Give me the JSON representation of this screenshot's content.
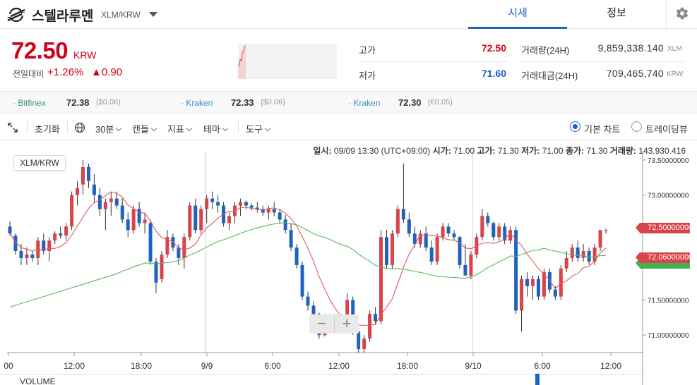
{
  "header": {
    "coin_name": "스텔라루멘",
    "pair": "XLM/KRW",
    "tabs": [
      {
        "label": "시세",
        "active": true
      },
      {
        "label": "정보",
        "active": false
      }
    ],
    "icons": {
      "logo": "stellar-logo-icon",
      "settings": "gear-icon",
      "dropdown": "caret-down-icon"
    }
  },
  "price": {
    "value": "72.50",
    "unit": "KRW",
    "change_label": "전일대비",
    "change_pct": "+1.26%",
    "change_abs": "▲0.90",
    "color": "#d0021b"
  },
  "stats": {
    "high_label": "고가",
    "high_value": "72.50",
    "low_label": "저가",
    "low_value": "71.60",
    "vol_label": "거래량(24H)",
    "vol_value": "9,859,338.140",
    "vol_unit": "XLM",
    "amt_label": "거래대금(24H)",
    "amt_value": "709,465,740",
    "amt_unit": "KRW"
  },
  "exchanges": [
    {
      "name": "Bitfinex",
      "price": "72.38",
      "sub": "($0.06)"
    },
    {
      "name": "Kraken",
      "price": "72.33",
      "sub": "($0.06)"
    },
    {
      "name": "Kraken",
      "price": "72.30",
      "sub": "(€0.05)"
    }
  ],
  "toolbar": {
    "reset": "초기화",
    "interval": "30분",
    "candle": "캔들",
    "indicator": "지표",
    "theme": "테마",
    "tools": "도구",
    "basic_chart": "기본 차트",
    "tradingview": "트레이딩뷰"
  },
  "chart_header": {
    "date_label": "일시:",
    "date_value": "09/09 13:30 (UTC+09:00)",
    "open_label": "시가:",
    "open_value": "71.00",
    "high_label": "고가:",
    "high_value": "71.30",
    "low_label": "저가:",
    "low_value": "71.00",
    "close_label": "종가:",
    "close_value": "71.30",
    "volume_label": "거래량:",
    "volume_value": "143,930.416"
  },
  "chart_badge": "XLM/KRW",
  "volume_label": "VOLUME",
  "price_tags": {
    "current": "72.50000000",
    "ma": "72.06000000"
  },
  "chart_data": {
    "type": "candlestick",
    "ylim": [
      70.75,
      73.55
    ],
    "y_ticks": [
      "73.50000000",
      "73.00000000",
      "72.50000000",
      "72.00000000",
      "71.50000000",
      "71.00000000"
    ],
    "y_tick_values": [
      73.5,
      73.0,
      72.5,
      72.0,
      71.5,
      71.0
    ],
    "x_ticks": [
      "00",
      "12:00",
      "18:00",
      "9/9",
      "6:00",
      "12:00",
      "18:00",
      "9/10",
      "6:00",
      "12:00"
    ],
    "candles": [
      [
        72.55,
        72.62,
        72.42,
        72.45
      ],
      [
        72.42,
        72.45,
        72.15,
        72.2
      ],
      [
        72.2,
        72.3,
        72.0,
        72.1
      ],
      [
        72.1,
        72.25,
        72.0,
        72.15
      ],
      [
        72.15,
        72.2,
        72.05,
        72.1
      ],
      [
        72.1,
        72.4,
        72.0,
        72.35
      ],
      [
        72.35,
        72.45,
        72.15,
        72.2
      ],
      [
        72.2,
        72.4,
        72.05,
        72.35
      ],
      [
        72.35,
        72.48,
        72.3,
        72.45
      ],
      [
        72.45,
        72.55,
        72.38,
        72.42
      ],
      [
        72.42,
        72.6,
        72.35,
        72.55
      ],
      [
        72.55,
        73.05,
        72.5,
        73.0
      ],
      [
        73.0,
        73.2,
        72.85,
        73.1
      ],
      [
        73.15,
        73.5,
        73.0,
        73.4
      ],
      [
        73.4,
        73.45,
        73.1,
        73.2
      ],
      [
        73.15,
        73.3,
        72.9,
        73.0
      ],
      [
        73.0,
        73.1,
        72.7,
        72.8
      ],
      [
        72.8,
        72.95,
        72.5,
        72.9
      ],
      [
        72.9,
        73.05,
        72.7,
        72.95
      ],
      [
        72.95,
        73.05,
        72.8,
        72.85
      ],
      [
        72.85,
        72.95,
        72.6,
        72.65
      ],
      [
        72.65,
        72.75,
        72.4,
        72.5
      ],
      [
        72.5,
        72.85,
        72.45,
        72.8
      ],
      [
        72.8,
        72.9,
        72.55,
        72.6
      ],
      [
        72.6,
        72.75,
        72.45,
        72.65
      ],
      [
        72.6,
        72.65,
        72.0,
        72.05
      ],
      [
        72.05,
        72.1,
        71.6,
        71.75
      ],
      [
        71.8,
        72.2,
        71.75,
        72.15
      ],
      [
        72.15,
        72.5,
        72.1,
        72.4
      ],
      [
        72.4,
        72.45,
        72.2,
        72.25
      ],
      [
        72.25,
        72.3,
        72.0,
        72.1
      ],
      [
        72.1,
        72.45,
        71.95,
        72.4
      ],
      [
        72.4,
        72.9,
        72.35,
        72.85
      ],
      [
        72.85,
        72.95,
        72.45,
        72.5
      ],
      [
        72.5,
        72.85,
        72.45,
        72.8
      ],
      [
        72.8,
        73.0,
        72.6,
        72.95
      ],
      [
        72.95,
        73.05,
        72.8,
        72.9
      ],
      [
        72.9,
        73.0,
        72.75,
        72.85
      ],
      [
        72.85,
        72.9,
        72.55,
        72.6
      ],
      [
        72.6,
        72.75,
        72.5,
        72.7
      ],
      [
        72.7,
        72.9,
        72.6,
        72.85
      ],
      [
        72.85,
        72.95,
        72.7,
        72.9
      ],
      [
        72.9,
        72.92,
        72.8,
        72.85
      ],
      [
        72.85,
        72.88,
        72.78,
        72.82
      ],
      [
        72.82,
        72.9,
        72.75,
        72.8
      ],
      [
        72.8,
        72.85,
        72.7,
        72.75
      ],
      [
        72.75,
        72.85,
        72.65,
        72.8
      ],
      [
        72.8,
        72.9,
        72.7,
        72.75
      ],
      [
        72.75,
        72.8,
        72.6,
        72.65
      ],
      [
        72.65,
        72.72,
        72.45,
        72.5
      ],
      [
        72.5,
        72.6,
        72.2,
        72.25
      ],
      [
        72.25,
        72.3,
        71.95,
        72.0
      ],
      [
        72.0,
        72.05,
        71.5,
        71.55
      ],
      [
        71.55,
        71.62,
        71.35,
        71.42
      ],
      [
        71.42,
        71.48,
        71.25,
        71.3
      ],
      [
        71.3,
        71.32,
        70.95,
        71.0
      ],
      [
        71.0,
        71.3,
        70.98,
        71.25
      ],
      [
        71.25,
        71.3,
        71.1,
        71.15
      ],
      [
        71.15,
        71.3,
        71.08,
        71.25
      ],
      [
        71.25,
        71.3,
        71.1,
        71.15
      ],
      [
        71.15,
        71.6,
        71.1,
        71.5
      ],
      [
        71.5,
        71.55,
        71.0,
        71.05
      ],
      [
        71.05,
        71.1,
        70.75,
        70.8
      ],
      [
        70.8,
        71.0,
        70.75,
        70.95
      ],
      [
        70.95,
        71.35,
        70.9,
        71.3
      ],
      [
        71.3,
        71.4,
        71.15,
        71.2
      ],
      [
        71.2,
        72.5,
        71.15,
        72.4
      ],
      [
        72.4,
        72.5,
        71.95,
        72.0
      ],
      [
        72.0,
        72.5,
        71.95,
        72.45
      ],
      [
        72.45,
        72.85,
        72.4,
        72.8
      ],
      [
        72.8,
        73.45,
        72.6,
        72.65
      ],
      [
        72.65,
        72.75,
        72.4,
        72.45
      ],
      [
        72.45,
        72.55,
        72.25,
        72.3
      ],
      [
        72.3,
        72.5,
        72.25,
        72.45
      ],
      [
        72.45,
        72.55,
        72.2,
        72.25
      ],
      [
        72.25,
        72.35,
        72.0,
        72.05
      ],
      [
        72.05,
        72.45,
        72.0,
        72.4
      ],
      [
        72.4,
        72.6,
        72.35,
        72.55
      ],
      [
        72.55,
        72.6,
        72.4,
        72.45
      ],
      [
        72.45,
        72.5,
        72.35,
        72.4
      ],
      [
        72.4,
        72.42,
        71.95,
        72.0
      ],
      [
        72.0,
        72.3,
        71.85,
        71.85
      ],
      [
        71.85,
        72.2,
        71.8,
        72.15
      ],
      [
        72.15,
        72.45,
        72.1,
        72.4
      ],
      [
        72.4,
        72.8,
        72.35,
        72.7
      ],
      [
        72.7,
        72.75,
        72.55,
        72.6
      ],
      [
        72.6,
        72.62,
        72.35,
        72.4
      ],
      [
        72.4,
        72.6,
        72.35,
        72.55
      ],
      [
        72.55,
        72.6,
        72.3,
        72.35
      ],
      [
        72.35,
        72.55,
        72.3,
        72.5
      ],
      [
        72.5,
        72.55,
        71.3,
        71.35
      ],
      [
        71.35,
        71.85,
        71.05,
        71.8
      ],
      [
        71.8,
        71.9,
        71.55,
        71.7
      ],
      [
        71.7,
        71.85,
        71.5,
        71.8
      ],
      [
        71.8,
        71.85,
        71.5,
        71.55
      ],
      [
        71.55,
        71.95,
        71.5,
        71.9
      ],
      [
        71.9,
        71.95,
        71.6,
        71.65
      ],
      [
        71.65,
        71.7,
        71.5,
        71.55
      ],
      [
        71.55,
        72.0,
        71.5,
        71.95
      ],
      [
        71.95,
        72.2,
        71.9,
        72.1
      ],
      [
        72.1,
        72.3,
        72.05,
        72.25
      ],
      [
        72.25,
        72.35,
        72.05,
        72.1
      ],
      [
        72.1,
        72.3,
        72.05,
        72.2
      ],
      [
        72.2,
        72.25,
        72.0,
        72.05
      ],
      [
        72.05,
        72.3,
        72.0,
        72.25
      ],
      [
        72.25,
        72.5,
        72.2,
        72.5
      ],
      [
        72.5,
        72.52,
        72.45,
        72.5
      ]
    ]
  }
}
